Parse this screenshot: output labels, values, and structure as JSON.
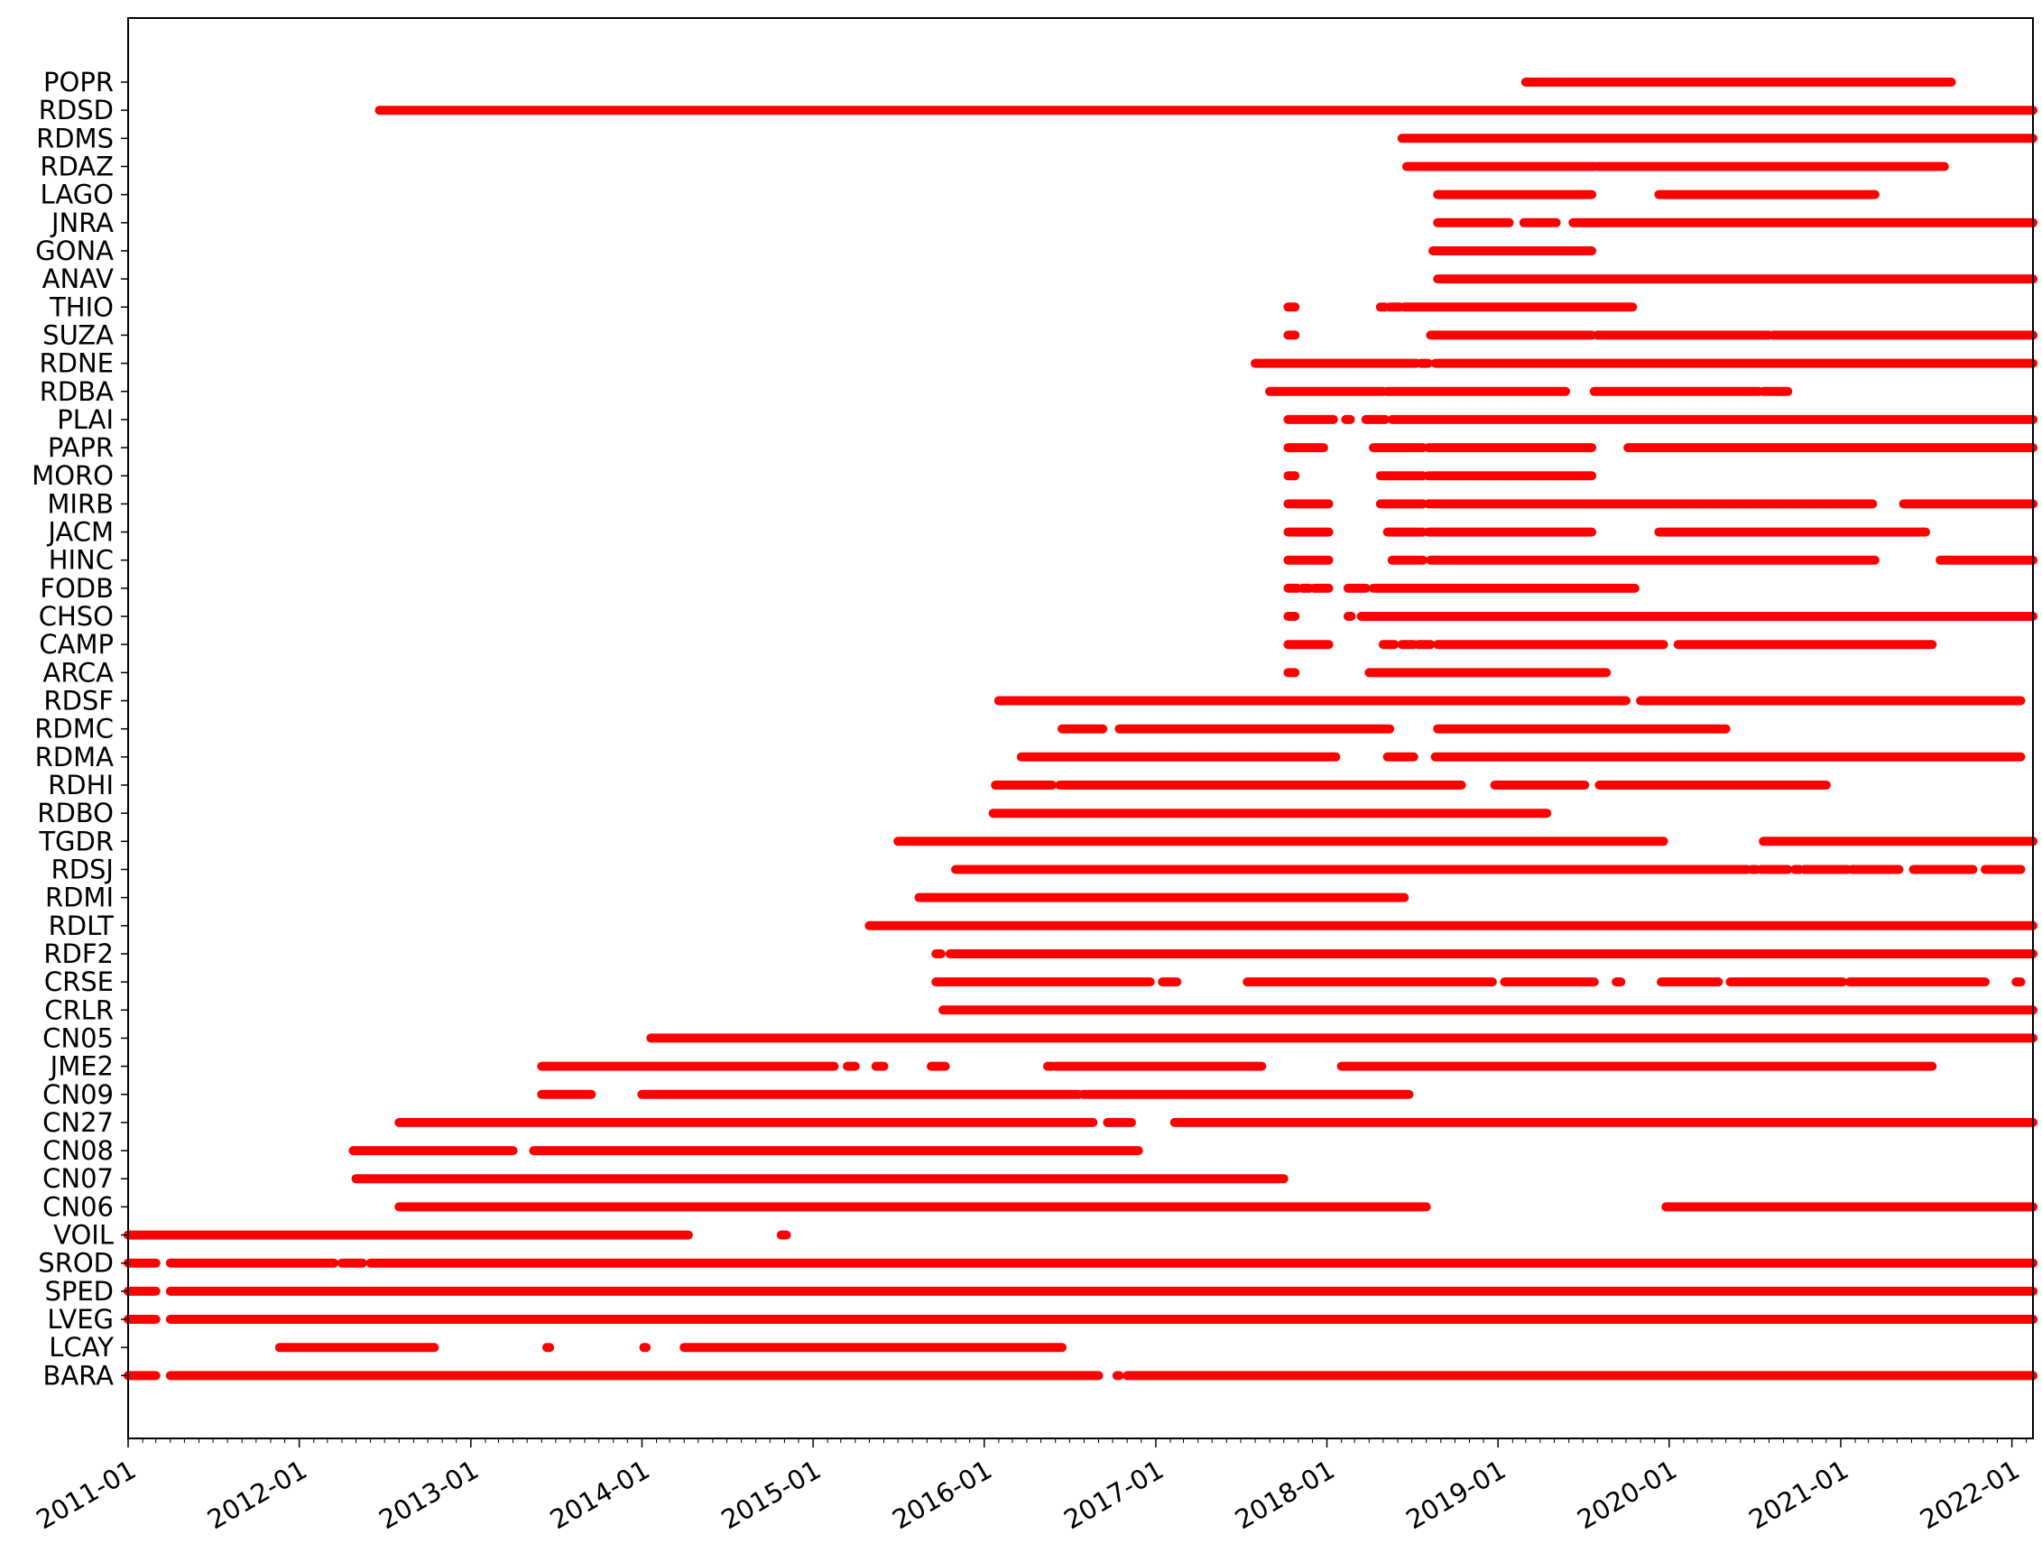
{
  "chart_data": {
    "type": "timeline",
    "xlim": [
      "2011-01-01",
      "2022-02-15"
    ],
    "x_ticks": [
      "2011-01",
      "2012-01",
      "2013-01",
      "2014-01",
      "2015-01",
      "2016-01",
      "2017-01",
      "2018-01",
      "2019-01",
      "2020-01",
      "2021-01",
      "2022-01"
    ],
    "grid": false,
    "color": "#ff0000",
    "series": [
      {
        "name": "BARA",
        "segments": [
          [
            "2011-01-01",
            "2011-03-01"
          ],
          [
            "2011-04-01",
            "2016-09-01"
          ],
          [
            "2016-10-10",
            "2016-10-15"
          ],
          [
            "2016-11-01",
            "2022-02-15"
          ]
        ]
      },
      {
        "name": "LCAY",
        "segments": [
          [
            "2011-11-20",
            "2012-10-15"
          ],
          [
            "2013-06-12",
            "2013-06-18"
          ],
          [
            "2014-01-05",
            "2014-01-10"
          ],
          [
            "2014-04-01",
            "2016-06-15"
          ]
        ]
      },
      {
        "name": "LVEG",
        "segments": [
          [
            "2011-01-01",
            "2011-03-01"
          ],
          [
            "2011-04-01",
            "2022-02-15"
          ]
        ]
      },
      {
        "name": "SPED",
        "segments": [
          [
            "2011-01-01",
            "2011-03-01"
          ],
          [
            "2011-04-01",
            "2022-02-15"
          ]
        ]
      },
      {
        "name": "SROD",
        "segments": [
          [
            "2011-01-01",
            "2011-03-01"
          ],
          [
            "2011-04-01",
            "2012-03-15"
          ],
          [
            "2012-04-01",
            "2012-05-15"
          ],
          [
            "2012-06-01",
            "2022-02-15"
          ]
        ]
      },
      {
        "name": "VOIL",
        "segments": [
          [
            "2011-01-01",
            "2014-04-10"
          ],
          [
            "2014-10-25",
            "2014-11-05"
          ]
        ]
      },
      {
        "name": "CN06",
        "segments": [
          [
            "2012-08-01",
            "2018-08-01"
          ],
          [
            "2019-12-25",
            "2022-02-15"
          ]
        ]
      },
      {
        "name": "CN07",
        "segments": [
          [
            "2012-05-01",
            "2017-10-01"
          ]
        ]
      },
      {
        "name": "CN08",
        "segments": [
          [
            "2012-04-25",
            "2013-04-01"
          ],
          [
            "2013-05-15",
            "2016-11-25"
          ]
        ]
      },
      {
        "name": "CN27",
        "segments": [
          [
            "2012-08-01",
            "2016-08-20"
          ],
          [
            "2016-09-20",
            "2016-11-10"
          ],
          [
            "2017-02-10",
            "2022-02-15"
          ]
        ]
      },
      {
        "name": "CN09",
        "segments": [
          [
            "2013-06-01",
            "2013-09-15"
          ],
          [
            "2014-01-01",
            "2016-07-20"
          ],
          [
            "2016-07-30",
            "2018-06-25"
          ]
        ]
      },
      {
        "name": "JME2",
        "segments": [
          [
            "2013-06-01",
            "2015-02-15"
          ],
          [
            "2015-03-15",
            "2015-04-01"
          ],
          [
            "2015-05-15",
            "2015-06-01"
          ],
          [
            "2015-09-10",
            "2015-10-10"
          ],
          [
            "2016-05-15",
            "2016-05-25"
          ],
          [
            "2016-06-01",
            "2017-08-15"
          ],
          [
            "2018-02-01",
            "2021-07-15"
          ]
        ]
      },
      {
        "name": "CN05",
        "segments": [
          [
            "2014-01-20",
            "2022-02-15"
          ]
        ]
      },
      {
        "name": "CRLR",
        "segments": [
          [
            "2015-10-05",
            "2022-02-15"
          ]
        ]
      },
      {
        "name": "CRSE",
        "segments": [
          [
            "2015-09-20",
            "2016-12-20"
          ],
          [
            "2017-01-15",
            "2017-02-15"
          ],
          [
            "2017-07-15",
            "2018-12-20"
          ],
          [
            "2019-01-15",
            "2019-07-25"
          ],
          [
            "2019-09-10",
            "2019-09-20"
          ],
          [
            "2019-12-15",
            "2020-04-15"
          ],
          [
            "2020-05-10",
            "2021-01-05"
          ],
          [
            "2021-01-20",
            "2021-11-05"
          ],
          [
            "2022-01-10",
            "2022-01-20"
          ]
        ]
      },
      {
        "name": "RDF2",
        "segments": [
          [
            "2015-09-20",
            "2015-10-01"
          ],
          [
            "2015-10-20",
            "2022-02-15"
          ]
        ]
      },
      {
        "name": "RDLT",
        "segments": [
          [
            "2015-05-01",
            "2022-02-15"
          ]
        ]
      },
      {
        "name": "RDMI",
        "segments": [
          [
            "2015-08-15",
            "2018-06-15"
          ]
        ]
      },
      {
        "name": "RDSJ",
        "segments": [
          [
            "2015-11-01",
            "2020-06-15"
          ],
          [
            "2020-06-25",
            "2020-07-05"
          ],
          [
            "2020-07-15",
            "2020-09-10"
          ],
          [
            "2020-09-25",
            "2020-10-05"
          ],
          [
            "2020-10-15",
            "2021-01-15"
          ],
          [
            "2021-01-25",
            "2021-05-05"
          ],
          [
            "2021-06-05",
            "2021-10-10"
          ],
          [
            "2021-11-05",
            "2022-01-20"
          ]
        ]
      },
      {
        "name": "TGDR",
        "segments": [
          [
            "2015-07-01",
            "2019-12-20"
          ],
          [
            "2020-07-20",
            "2022-02-15"
          ]
        ]
      },
      {
        "name": "RDBO",
        "segments": [
          [
            "2016-01-20",
            "2019-04-15"
          ]
        ]
      },
      {
        "name": "RDHI",
        "segments": [
          [
            "2016-01-25",
            "2016-05-25"
          ],
          [
            "2016-06-10",
            "2018-10-15"
          ],
          [
            "2018-12-25",
            "2019-07-05"
          ],
          [
            "2019-08-05",
            "2020-12-01"
          ]
        ]
      },
      {
        "name": "RDMA",
        "segments": [
          [
            "2016-03-20",
            "2018-01-20"
          ],
          [
            "2018-05-10",
            "2018-07-05"
          ],
          [
            "2018-08-20",
            "2022-01-20"
          ]
        ]
      },
      {
        "name": "RDMC",
        "segments": [
          [
            "2016-06-15",
            "2016-09-10"
          ],
          [
            "2016-10-15",
            "2018-05-15"
          ],
          [
            "2018-08-25",
            "2020-05-01"
          ]
        ]
      },
      {
        "name": "RDSF",
        "segments": [
          [
            "2016-02-01",
            "2019-10-01"
          ],
          [
            "2019-11-01",
            "2022-01-20"
          ]
        ]
      },
      {
        "name": "ARCA",
        "segments": [
          [
            "2017-10-10",
            "2017-10-25"
          ],
          [
            "2018-04-01",
            "2019-08-20"
          ]
        ]
      },
      {
        "name": "CAMP",
        "segments": [
          [
            "2017-10-10",
            "2018-01-05"
          ],
          [
            "2018-05-01",
            "2018-05-25"
          ],
          [
            "2018-06-10",
            "2018-07-05"
          ],
          [
            "2018-07-15",
            "2018-08-10"
          ],
          [
            "2018-08-25",
            "2019-12-20"
          ],
          [
            "2020-01-20",
            "2021-07-15"
          ]
        ]
      },
      {
        "name": "CHSO",
        "segments": [
          [
            "2017-10-10",
            "2017-10-25"
          ],
          [
            "2018-02-15",
            "2018-02-22"
          ],
          [
            "2018-03-15",
            "2022-02-15"
          ]
        ]
      },
      {
        "name": "FODB",
        "segments": [
          [
            "2017-10-10",
            "2017-10-30"
          ],
          [
            "2017-11-10",
            "2017-11-25"
          ],
          [
            "2017-12-05",
            "2018-01-05"
          ],
          [
            "2018-02-15",
            "2018-03-25"
          ],
          [
            "2018-04-10",
            "2019-10-20"
          ]
        ]
      },
      {
        "name": "HINC",
        "segments": [
          [
            "2017-10-10",
            "2018-01-05"
          ],
          [
            "2018-05-20",
            "2018-07-25"
          ],
          [
            "2018-08-10",
            "2021-03-15"
          ],
          [
            "2021-08-01",
            "2022-02-15"
          ]
        ]
      },
      {
        "name": "JACM",
        "segments": [
          [
            "2017-10-10",
            "2018-01-05"
          ],
          [
            "2018-05-10",
            "2018-07-25"
          ],
          [
            "2018-08-05",
            "2019-07-20"
          ],
          [
            "2019-12-10",
            "2021-07-01"
          ]
        ]
      },
      {
        "name": "MIRB",
        "segments": [
          [
            "2017-10-10",
            "2018-01-05"
          ],
          [
            "2018-04-25",
            "2018-07-25"
          ],
          [
            "2018-08-05",
            "2021-03-10"
          ],
          [
            "2021-05-15",
            "2022-02-15"
          ]
        ]
      },
      {
        "name": "MORO",
        "segments": [
          [
            "2017-10-10",
            "2017-10-25"
          ],
          [
            "2018-04-25",
            "2018-07-25"
          ],
          [
            "2018-08-05",
            "2019-07-20"
          ]
        ]
      },
      {
        "name": "PAPR",
        "segments": [
          [
            "2017-10-10",
            "2017-12-25"
          ],
          [
            "2018-04-10",
            "2018-07-25"
          ],
          [
            "2018-08-05",
            "2019-07-20"
          ],
          [
            "2019-10-05",
            "2022-02-15"
          ]
        ]
      },
      {
        "name": "PLAI",
        "segments": [
          [
            "2017-10-10",
            "2018-01-15"
          ],
          [
            "2018-02-10",
            "2018-02-20"
          ],
          [
            "2018-03-25",
            "2018-05-05"
          ],
          [
            "2018-05-20",
            "2022-02-15"
          ]
        ]
      },
      {
        "name": "RDBA",
        "segments": [
          [
            "2017-09-01",
            "2018-05-01"
          ],
          [
            "2018-05-10",
            "2019-05-25"
          ],
          [
            "2019-07-25",
            "2020-07-10"
          ],
          [
            "2020-07-20",
            "2020-09-10"
          ]
        ]
      },
      {
        "name": "RDNE",
        "segments": [
          [
            "2017-08-01",
            "2018-07-10"
          ],
          [
            "2018-07-20",
            "2018-08-05"
          ],
          [
            "2018-08-20",
            "2022-02-15"
          ]
        ]
      },
      {
        "name": "SUZA",
        "segments": [
          [
            "2017-10-10",
            "2017-10-25"
          ],
          [
            "2018-08-10",
            "2019-07-20"
          ],
          [
            "2019-08-01",
            "2020-08-01"
          ],
          [
            "2020-08-10",
            "2022-02-15"
          ]
        ]
      },
      {
        "name": "THIO",
        "segments": [
          [
            "2017-10-10",
            "2017-10-25"
          ],
          [
            "2018-04-25",
            "2018-05-05"
          ],
          [
            "2018-05-15",
            "2018-06-05"
          ],
          [
            "2018-06-15",
            "2019-10-15"
          ]
        ]
      },
      {
        "name": "ANAV",
        "segments": [
          [
            "2018-08-25",
            "2022-02-15"
          ]
        ]
      },
      {
        "name": "GONA",
        "segments": [
          [
            "2018-08-15",
            "2019-07-20"
          ]
        ]
      },
      {
        "name": "JNRA",
        "segments": [
          [
            "2018-08-25",
            "2019-01-25"
          ],
          [
            "2019-02-25",
            "2019-05-05"
          ],
          [
            "2019-06-10",
            "2022-02-15"
          ]
        ]
      },
      {
        "name": "LAGO",
        "segments": [
          [
            "2018-08-25",
            "2019-07-20"
          ],
          [
            "2019-12-10",
            "2021-03-15"
          ]
        ]
      },
      {
        "name": "RDAZ",
        "segments": [
          [
            "2018-06-20",
            "2019-07-25"
          ],
          [
            "2019-08-01",
            "2021-08-10"
          ]
        ]
      },
      {
        "name": "RDMS",
        "segments": [
          [
            "2018-06-10",
            "2022-02-15"
          ]
        ]
      },
      {
        "name": "RDSD",
        "segments": [
          [
            "2012-06-20",
            "2022-02-15"
          ]
        ]
      },
      {
        "name": "POPR",
        "segments": [
          [
            "2019-03-01",
            "2021-08-25"
          ]
        ]
      }
    ]
  }
}
